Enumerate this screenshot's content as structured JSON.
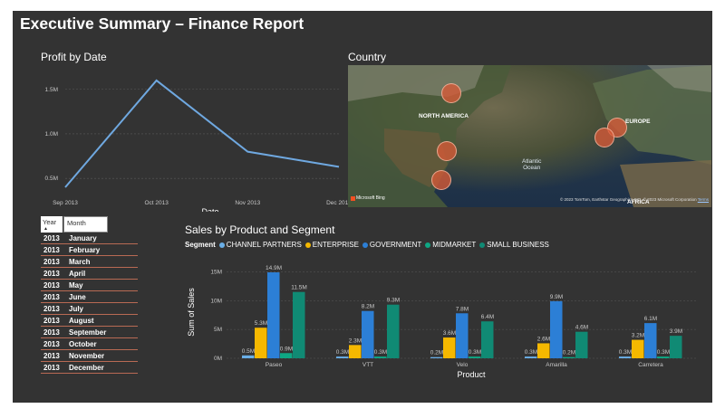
{
  "report": {
    "title": "Executive Summary – Finance Report"
  },
  "profit_chart": {
    "title": "Profit by Date",
    "xlabel": "Date",
    "y_ticks": [
      "1.5M",
      "1.0M",
      "0.5M"
    ],
    "x_ticks": [
      "Sep 2013",
      "Oct 2013",
      "Nov 2013",
      "Dec 2013"
    ]
  },
  "map": {
    "title": "Country",
    "labels": {
      "north_america": "NORTH AMERICA",
      "europe": "EUROPE",
      "africa": "AFRICA",
      "ocean": "Atlantic\nOcean"
    },
    "logo": "Microsoft Bing",
    "attribution": "© 2023 TomTom, Earthstar Geographics SIO, © 2023 Microsoft Corporation",
    "terms_link": "Terms",
    "bubbles": [
      {
        "name": "Canada"
      },
      {
        "name": "United States of America"
      },
      {
        "name": "Mexico"
      },
      {
        "name": "Germany"
      },
      {
        "name": "France"
      }
    ]
  },
  "slicer": {
    "year_header": "Year",
    "month_header": "Month",
    "rows": [
      {
        "year": "2013",
        "month": "January"
      },
      {
        "year": "2013",
        "month": "February"
      },
      {
        "year": "2013",
        "month": "March"
      },
      {
        "year": "2013",
        "month": "April"
      },
      {
        "year": "2013",
        "month": "May"
      },
      {
        "year": "2013",
        "month": "June"
      },
      {
        "year": "2013",
        "month": "July"
      },
      {
        "year": "2013",
        "month": "August"
      },
      {
        "year": "2013",
        "month": "September"
      },
      {
        "year": "2013",
        "month": "October"
      },
      {
        "year": "2013",
        "month": "November"
      },
      {
        "year": "2013",
        "month": "December"
      }
    ]
  },
  "sales_chart": {
    "title": "Sales by Product and Segment",
    "legend_title": "Segment",
    "y_ticks": [
      "15M",
      "10M",
      "5M",
      "0M"
    ]
  },
  "colors": {
    "line": "#6fa8e0",
    "channel_partners": "#6aaee6",
    "enterprise": "#f5b800",
    "government": "#2c7fd6",
    "midmarket": "#0ea784",
    "small_business": "#108a74"
  },
  "chart_data": [
    {
      "type": "line",
      "title": "Profit by Date",
      "xlabel": "Date",
      "ylabel": "",
      "x": [
        "Sep 2013",
        "Oct 2013",
        "Nov 2013",
        "Dec 2013"
      ],
      "series": [
        {
          "values": [
            0.4,
            1.6,
            0.8,
            0.63
          ]
        }
      ],
      "unit": "M",
      "ylim": [
        0.4,
        1.65
      ],
      "grid": true
    },
    {
      "type": "bar",
      "title": "Sales by Product and Segment",
      "xlabel": "Product",
      "ylabel": "Sum of Sales",
      "categories": [
        "Paseo",
        "VTT",
        "Velo",
        "Amarilla",
        "Carretera"
      ],
      "series": [
        {
          "name": "CHANNEL PARTNERS",
          "values": [
            0.5,
            0.3,
            0.2,
            0.3,
            0.3
          ],
          "labels": [
            "0.5M",
            "0.3M",
            "0.2M",
            "0.3M",
            "0.3M"
          ]
        },
        {
          "name": "ENTERPRISE",
          "values": [
            5.3,
            2.3,
            3.6,
            2.6,
            3.2
          ],
          "labels": [
            "5.3M",
            "2.3M",
            "3.6M",
            "2.6M",
            "3.2M"
          ]
        },
        {
          "name": "GOVERNMENT",
          "values": [
            14.9,
            8.2,
            7.8,
            9.9,
            6.1
          ],
          "labels": [
            "14.9M",
            "8.2M",
            "7.8M",
            "9.9M",
            "6.1M"
          ]
        },
        {
          "name": "MIDMARKET",
          "values": [
            0.9,
            0.3,
            0.3,
            0.2,
            0.3
          ],
          "labels": [
            "0.9M",
            "0.3M",
            "0.3M",
            "0.2M",
            "0.3M"
          ]
        },
        {
          "name": "SMALL BUSINESS",
          "values": [
            11.5,
            9.3,
            6.4,
            4.6,
            3.9
          ],
          "labels": [
            "11.5M",
            "9.3M",
            "6.4M",
            "4.6M",
            "3.9M"
          ]
        }
      ],
      "unit": "M",
      "ylim": [
        0,
        16
      ],
      "legend": "top-left",
      "grid": true
    }
  ]
}
